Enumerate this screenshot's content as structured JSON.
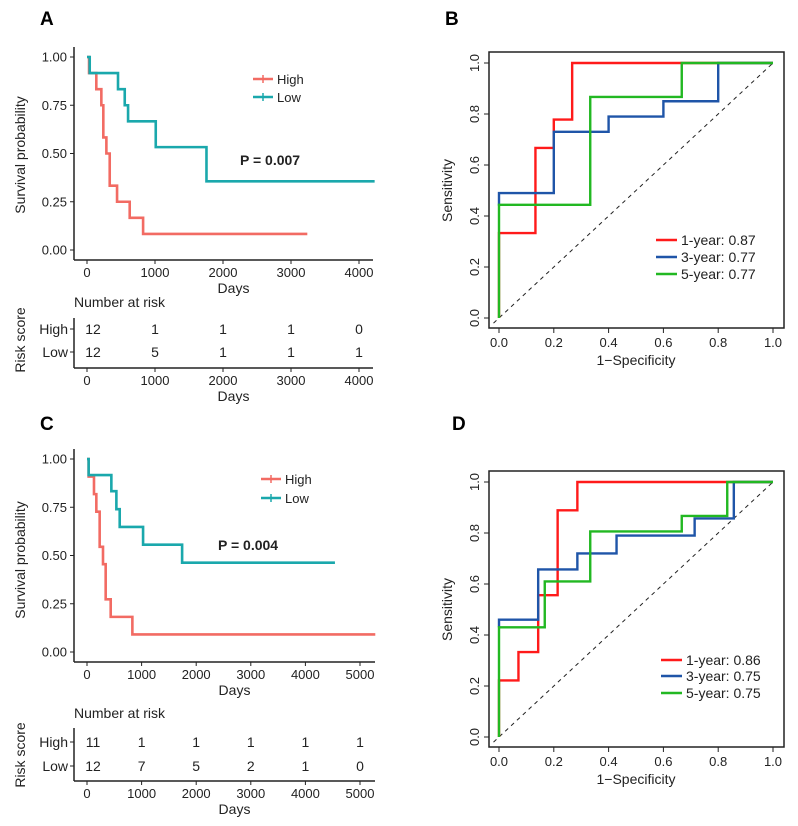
{
  "colors": {
    "km_high": "#F26B63",
    "km_low": "#1AA8AC",
    "roc_1": "#FF1A1A",
    "roc_3": "#1F55A8",
    "roc_5": "#22B822"
  },
  "chart_data": [
    {
      "panel": "A",
      "type": "line",
      "subtype": "kaplan-meier step",
      "xlabel": "Days",
      "ylabel": "Survival probability",
      "xlim": [
        0,
        4200
      ],
      "ylim": [
        0,
        1
      ],
      "xticks": [
        "0",
        "1000",
        "2000",
        "3000",
        "4000"
      ],
      "yticks": [
        "0.00",
        "0.25",
        "0.50",
        "0.75",
        "1.00"
      ],
      "p_value": "P = 0.007",
      "legend_position": "top-right",
      "series": [
        {
          "name": "High",
          "times": [
            30,
            137,
            211,
            240,
            285,
            334,
            442,
            628,
            825
          ],
          "surv": [
            0.917,
            0.833,
            0.75,
            0.583,
            0.5,
            0.333,
            0.25,
            0.167,
            0.083
          ],
          "end": 3240
        },
        {
          "name": "Low",
          "times": [
            40,
            456,
            555,
            604,
            1011,
            1757
          ],
          "surv": [
            0.917,
            0.833,
            0.75,
            0.667,
            0.533,
            0.356
          ],
          "end": 4230
        }
      ],
      "risk_table": {
        "title": "Number at risk",
        "ylabel": "Risk score",
        "xlabel": "Days",
        "rows": [
          {
            "name": "High",
            "values": [
              "12",
              "1",
              "1",
              "1",
              "0"
            ]
          },
          {
            "name": "Low",
            "values": [
              "12",
              "5",
              "1",
              "1",
              "1"
            ]
          }
        ]
      }
    },
    {
      "panel": "B",
      "type": "line",
      "subtype": "roc",
      "xlabel": "1−Specificity",
      "ylabel": "Sensitivity",
      "xlim": [
        0,
        1
      ],
      "ylim": [
        0,
        1
      ],
      "xticks": [
        "0.0",
        "0.2",
        "0.4",
        "0.6",
        "0.8",
        "1.0"
      ],
      "yticks": [
        "0.0",
        "0.2",
        "0.4",
        "0.6",
        "0.8",
        "1.0"
      ],
      "legend_position": "bottom-right",
      "reference_line": "diagonal dashed",
      "series": [
        {
          "name": "1-year: 0.87",
          "x": [
            0,
            0,
            0.133,
            0.133,
            0.2,
            0.2,
            0.267,
            0.267,
            1
          ],
          "y": [
            0,
            0.333,
            0.333,
            0.667,
            0.667,
            0.778,
            0.778,
            1,
            1
          ]
        },
        {
          "name": "3-year: 0.77",
          "x": [
            0,
            0,
            0.2,
            0.2,
            0.4,
            0.4,
            0.6,
            0.6,
            0.8,
            0.8,
            1
          ],
          "y": [
            0.44,
            0.49,
            0.49,
            0.73,
            0.73,
            0.79,
            0.79,
            0.85,
            0.85,
            1,
            1
          ]
        },
        {
          "name": "5-year: 0.77",
          "x": [
            0,
            0,
            0.333,
            0.333,
            0.667,
            0.667,
            1
          ],
          "y": [
            0,
            0.444,
            0.444,
            0.867,
            0.867,
            1,
            1
          ]
        }
      ]
    },
    {
      "panel": "C",
      "type": "line",
      "subtype": "kaplan-meier step",
      "xlabel": "Days",
      "ylabel": "Survival probability",
      "xlim": [
        0,
        5250
      ],
      "ylim": [
        0,
        1
      ],
      "xticks": [
        "0",
        "1000",
        "2000",
        "3000",
        "4000",
        "5000"
      ],
      "yticks": [
        "0.00",
        "0.25",
        "0.50",
        "0.75",
        "1.00"
      ],
      "p_value": "P = 0.004",
      "legend_position": "top-right",
      "series": [
        {
          "name": "High",
          "times": [
            30,
            128,
            171,
            232,
            293,
            342,
            434,
            831
          ],
          "surv": [
            0.909,
            0.818,
            0.727,
            0.545,
            0.455,
            0.273,
            0.182,
            0.091
          ],
          "end": 5280
        },
        {
          "name": "Low",
          "times": [
            30,
            446,
            538,
            599,
            1027,
            1742
          ],
          "surv": [
            0.917,
            0.833,
            0.74,
            0.648,
            0.556,
            0.463
          ],
          "end": 4541
        }
      ],
      "risk_table": {
        "title": "Number at risk",
        "ylabel": "Risk score",
        "xlabel": "Days",
        "rows": [
          {
            "name": "High",
            "values": [
              "11",
              "1",
              "1",
              "1",
              "1",
              "1"
            ]
          },
          {
            "name": "Low",
            "values": [
              "12",
              "7",
              "5",
              "2",
              "1",
              "0"
            ]
          }
        ]
      }
    },
    {
      "panel": "D",
      "type": "line",
      "subtype": "roc",
      "xlabel": "1−Specificity",
      "ylabel": "Sensitivity",
      "xlim": [
        0,
        1
      ],
      "ylim": [
        0,
        1
      ],
      "xticks": [
        "0.0",
        "0.2",
        "0.4",
        "0.6",
        "0.8",
        "1.0"
      ],
      "yticks": [
        "0.0",
        "0.2",
        "0.4",
        "0.6",
        "0.8",
        "1.0"
      ],
      "legend_position": "bottom-right",
      "reference_line": "diagonal dashed",
      "series": [
        {
          "name": "1-year: 0.86",
          "x": [
            0,
            0,
            0.071,
            0.071,
            0.143,
            0.143,
            0.214,
            0.214,
            0.286,
            0.286,
            1
          ],
          "y": [
            0,
            0.222,
            0.222,
            0.333,
            0.333,
            0.556,
            0.556,
            0.889,
            0.889,
            1,
            1
          ]
        },
        {
          "name": "3-year: 0.75",
          "x": [
            0,
            0,
            0.143,
            0.143,
            0.286,
            0.286,
            0.429,
            0.429,
            0.714,
            0.714,
            0.857,
            0.857,
            1
          ],
          "y": [
            0.43,
            0.46,
            0.46,
            0.657,
            0.657,
            0.72,
            0.72,
            0.79,
            0.79,
            0.857,
            0.857,
            1,
            1
          ]
        },
        {
          "name": "5-year: 0.75",
          "x": [
            0,
            0,
            0.167,
            0.167,
            0.333,
            0.333,
            0.667,
            0.667,
            0.833,
            0.833,
            1
          ],
          "y": [
            0,
            0.43,
            0.43,
            0.61,
            0.61,
            0.806,
            0.806,
            0.867,
            0.867,
            1,
            1
          ]
        }
      ]
    }
  ]
}
